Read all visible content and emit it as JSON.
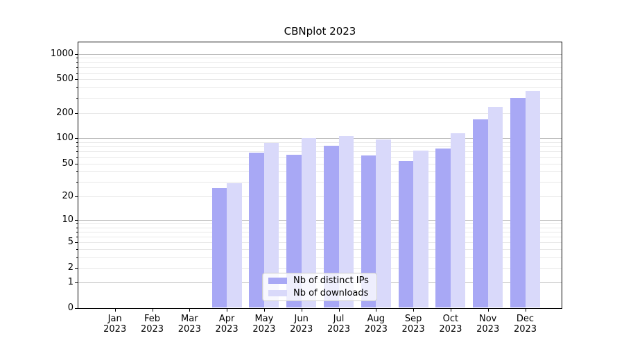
{
  "title": "CBNplot 2023",
  "chart_data": {
    "type": "bar",
    "title": "CBNplot 2023",
    "categories": [
      "Jan",
      "Feb",
      "Mar",
      "Apr",
      "May",
      "Jun",
      "Jul",
      "Aug",
      "Sep",
      "Oct",
      "Nov",
      "Dec"
    ],
    "year_label": "2023",
    "series": [
      {
        "name": "Nb of distinct IPs",
        "color": "#a8a8f5",
        "values": [
          0,
          0,
          0,
          25,
          67,
          64,
          82,
          63,
          54,
          75,
          167,
          305
        ]
      },
      {
        "name": "Nb of downloads",
        "color": "#d9d9fa",
        "values": [
          0,
          0,
          0,
          29,
          88,
          100,
          106,
          97,
          71,
          115,
          238,
          362
        ]
      }
    ],
    "yscale": "log1p",
    "ylim": [
      0,
      1380
    ],
    "yticks": [
      0,
      1,
      2,
      5,
      10,
      20,
      50,
      100,
      200,
      500,
      1000
    ],
    "major_yticks": [
      1,
      10,
      100,
      1000
    ],
    "minor_yticks": [
      3,
      4,
      6,
      7,
      8,
      9,
      30,
      40,
      60,
      70,
      80,
      90,
      300,
      400,
      600,
      700,
      800,
      900
    ],
    "grid": true,
    "legend_position": "lower center",
    "colors": {
      "major_grid": "#bdbdbd",
      "minor_grid": "#e8e8e8",
      "axis": "#000000",
      "background": "#ffffff"
    }
  }
}
